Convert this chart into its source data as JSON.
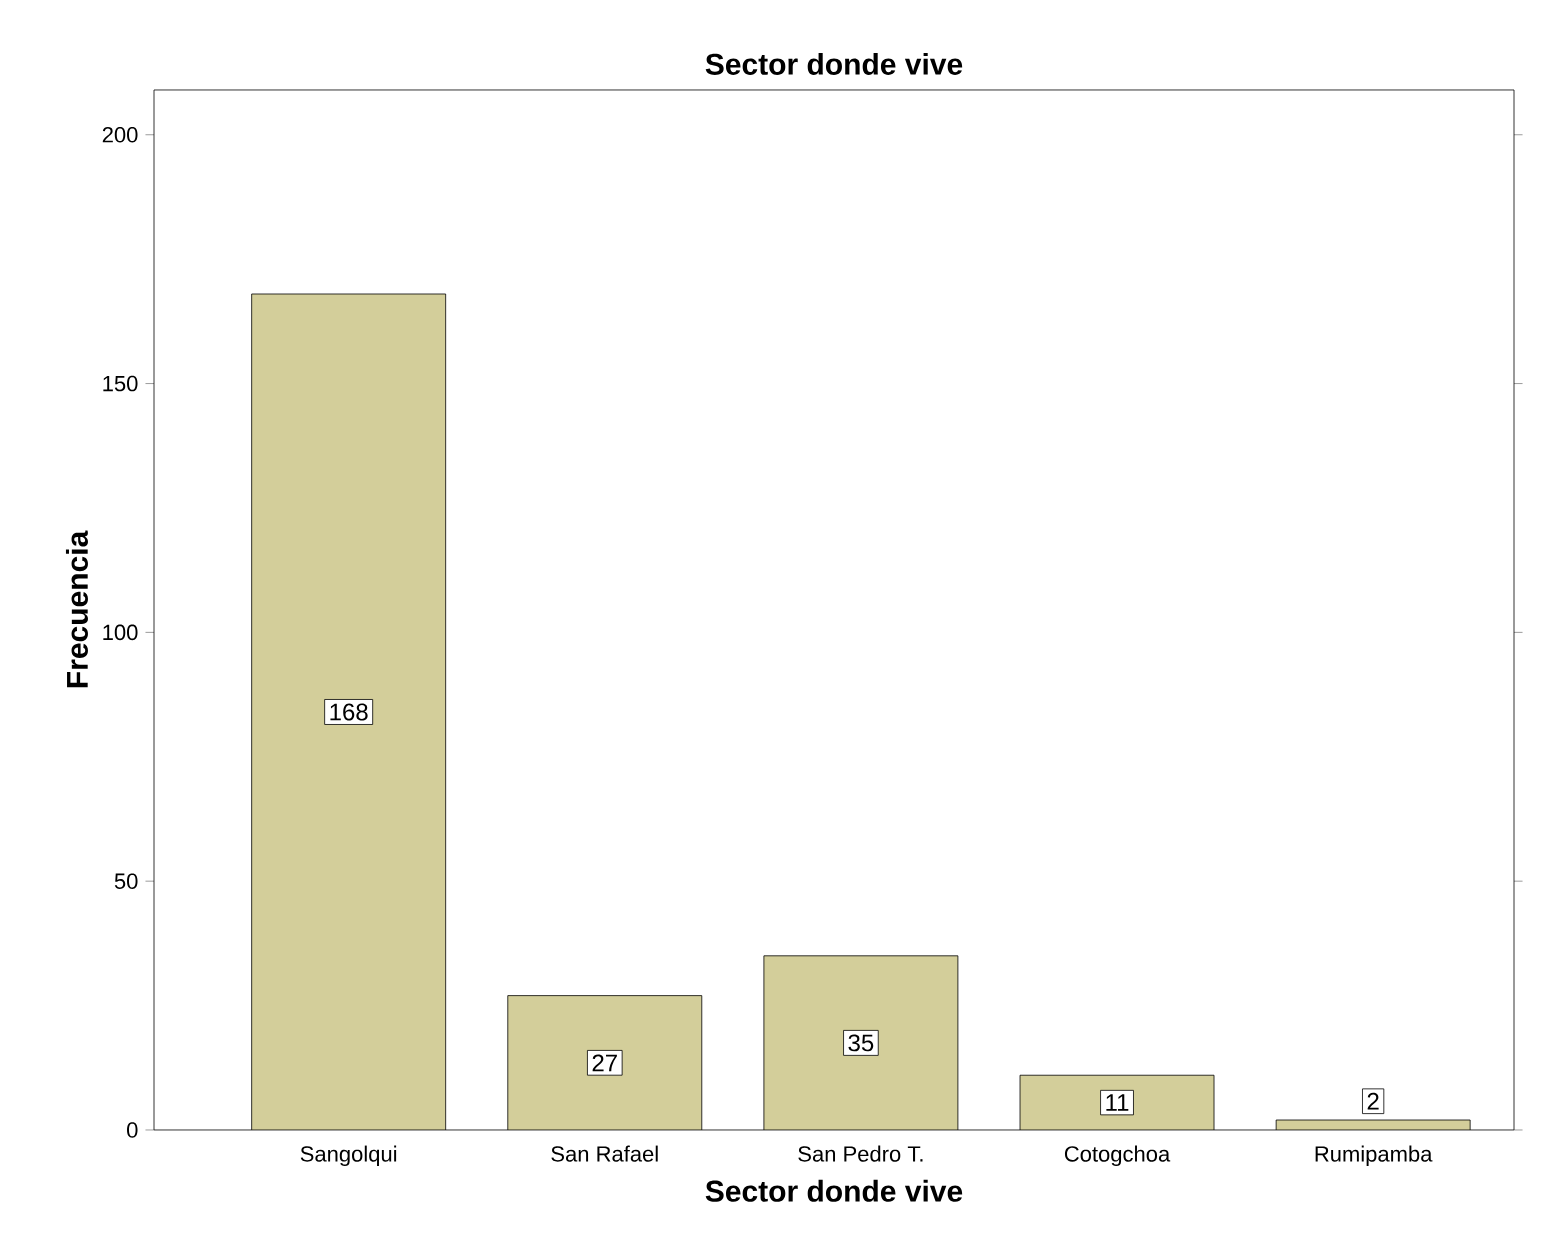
{
  "chart_data": {
    "type": "bar",
    "title": "Sector donde vive",
    "xlabel": "Sector donde vive",
    "ylabel": "Frecuencia",
    "categories": [
      "Sangolqui",
      "San Rafael",
      "San Pedro T.",
      "Cotogchoa",
      "Rumipamba"
    ],
    "values": [
      168,
      27,
      35,
      11,
      2
    ],
    "color": "#d3ce9a",
    "ylim": [
      0,
      209
    ],
    "yticks": [
      0,
      50,
      100,
      150,
      200
    ],
    "grid": false,
    "data_labels": true
  }
}
